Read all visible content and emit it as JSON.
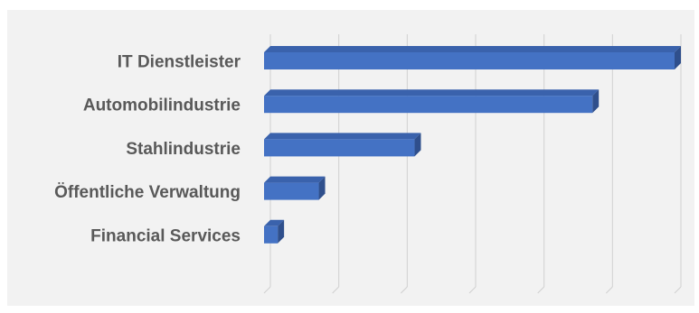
{
  "chart_data": {
    "type": "bar",
    "orientation": "horizontal",
    "style": "3d",
    "categories": [
      "IT Dienstleister",
      "Automobilindustrie",
      "Stahlindustrie",
      "Öffentliche Verwaltung",
      "Financial Services"
    ],
    "values": [
      60,
      48,
      22,
      8,
      2
    ],
    "xlim": [
      0,
      60
    ],
    "grid": true,
    "legend": "none",
    "title": "",
    "xlabel": "",
    "ylabel": "",
    "colors": {
      "bar_front": "#4472c4",
      "bar_top": "#3a62ac",
      "bar_side": "#2f4f8c",
      "grid": "#d0d0d0",
      "background": "#f2f2f2"
    }
  }
}
